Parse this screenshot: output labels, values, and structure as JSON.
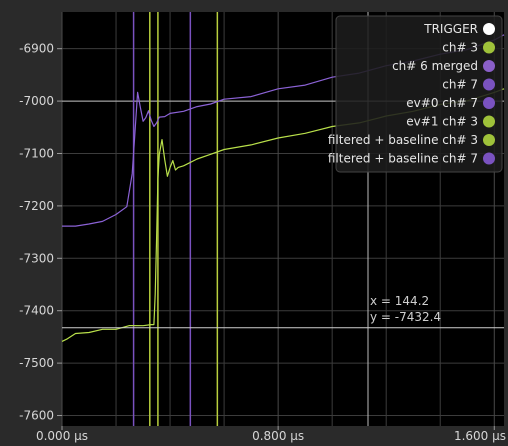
{
  "chart_data": {
    "type": "line",
    "title": "",
    "xlabel": "",
    "ylabel": "",
    "xlim": [
      0.0,
      1.636
    ],
    "ylim": [
      -7620,
      -6830
    ],
    "grid": true,
    "x_ticks": [
      {
        "value": 0.0,
        "label": "0.000 µs"
      },
      {
        "value": 0.8,
        "label": "0.800 µs"
      },
      {
        "value": 1.6,
        "label": "1.600 µs"
      }
    ],
    "x_minor_ticks": [
      0.2,
      0.4,
      0.6,
      1.0,
      1.2,
      1.4
    ],
    "y_ticks": [
      -6900,
      -7000,
      -7100,
      -7200,
      -7300,
      -7400,
      -7500,
      -7600
    ],
    "legend_position": "top-right",
    "legend": [
      {
        "label": "TRIGGER",
        "color": "#ffffff"
      },
      {
        "label": "ch# 3",
        "color": "#9fc23a"
      },
      {
        "label": "ch# 6 merged",
        "color": "#8a5fc8"
      },
      {
        "label": "ch# 7",
        "color": "#7a52c0"
      },
      {
        "label": "ev#0 ch# 7",
        "color": "#7a52c0"
      },
      {
        "label": "ev#1 ch# 3",
        "color": "#9fc23a"
      },
      {
        "label": "filtered + baseline ch# 3",
        "color": "#9fc23a"
      },
      {
        "label": "filtered + baseline ch# 7",
        "color": "#7a52c0"
      }
    ],
    "series": [
      {
        "color": "#8b62d6",
        "x": [
          0.0,
          0.05,
          0.1,
          0.15,
          0.2,
          0.24,
          0.26,
          0.27,
          0.28,
          0.29,
          0.3,
          0.31,
          0.32,
          0.33,
          0.34,
          0.35,
          0.36,
          0.38,
          0.4,
          0.45,
          0.5,
          0.55,
          0.6,
          0.7,
          0.8,
          0.9,
          1.0,
          1.1,
          1.2,
          1.3,
          1.4,
          1.5,
          1.6,
          1.636
        ],
        "y": [
          -7240,
          -7237,
          -7236,
          -7228,
          -7218,
          -7200,
          -7140,
          -7060,
          -6985,
          -7010,
          -7040,
          -7030,
          -7020,
          -7035,
          -7050,
          -7040,
          -7032,
          -7028,
          -7025,
          -7018,
          -7012,
          -7004,
          -6998,
          -6990,
          -6978,
          -6968,
          -6956,
          -6945,
          -6934,
          -6922,
          -6912,
          -6900,
          -6885,
          -6872
        ]
      },
      {
        "color": "#b9e04a",
        "x": [
          0.0,
          0.02,
          0.05,
          0.1,
          0.15,
          0.2,
          0.25,
          0.3,
          0.33,
          0.34,
          0.345,
          0.35,
          0.355,
          0.36,
          0.37,
          0.38,
          0.39,
          0.4,
          0.41,
          0.42,
          0.43,
          0.45,
          0.5,
          0.55,
          0.6,
          0.7,
          0.8,
          0.9,
          1.0,
          1.1,
          1.2,
          1.3,
          1.4,
          1.5,
          1.6,
          1.636
        ],
        "y": [
          -7460,
          -7452,
          -7445,
          -7440,
          -7437,
          -7434,
          -7430,
          -7427,
          -7428,
          -7425,
          -7370,
          -7260,
          -7150,
          -7100,
          -7075,
          -7110,
          -7145,
          -7125,
          -7115,
          -7130,
          -7128,
          -7122,
          -7112,
          -7100,
          -7094,
          -7082,
          -7072,
          -7060,
          -7050,
          -7040,
          -7030,
          -7018,
          -7008,
          -6998,
          -6985,
          -6975
        ]
      }
    ],
    "vertical_markers": [
      {
        "x": 0.265,
        "color": "#7a52c0"
      },
      {
        "x": 0.325,
        "color": "#b9cf3e"
      },
      {
        "x": 0.355,
        "color": "#b9cf3e"
      },
      {
        "x": 0.475,
        "color": "#7a52c0"
      },
      {
        "x": 0.575,
        "color": "#b9cf3e"
      }
    ],
    "cursor": {
      "x": 144.2,
      "y": -7432.4,
      "x_label": "x = 144.2",
      "y_label": "y = -7432.4",
      "y_line": -7432.4
    },
    "crosshair_y": -7000
  }
}
